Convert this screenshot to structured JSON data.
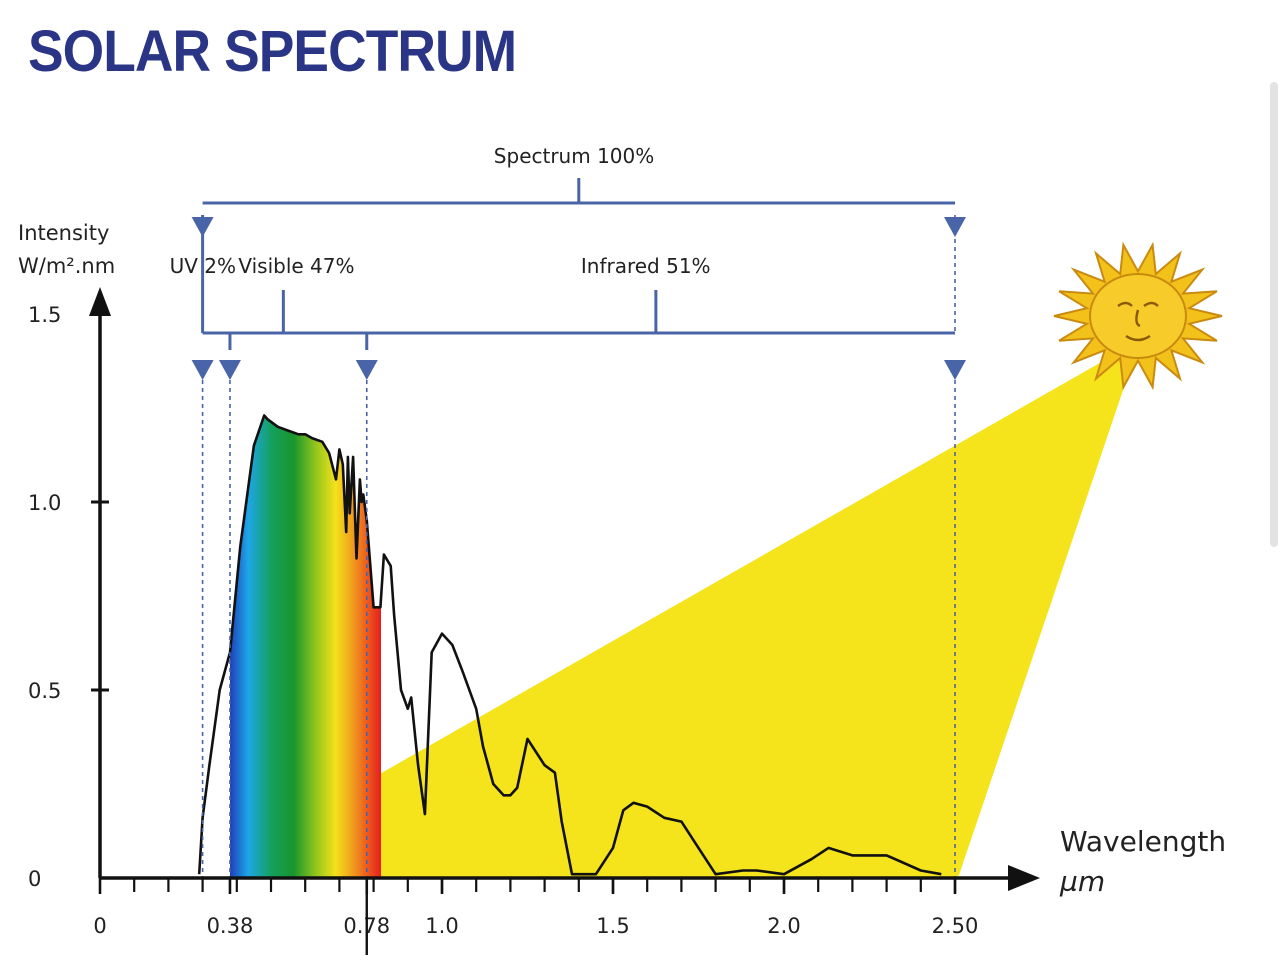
{
  "title": "SOLAR SPECTRUM",
  "colors": {
    "title": "#2a3585",
    "bracket": "#4a64a8",
    "light_beam": "#f5e31c",
    "sun": "#f3c21a",
    "curve": "#111111"
  },
  "chart_data": {
    "type": "line",
    "title": "SOLAR SPECTRUM",
    "ylabel_lines": [
      "Intensity",
      "W/m².nm"
    ],
    "xlabel_lines": [
      "Wavelength",
      "µm"
    ],
    "xlim": [
      0,
      2.6
    ],
    "ylim": [
      0,
      1.5
    ],
    "x_ticks": [
      {
        "value": 0,
        "label": "0"
      },
      {
        "value": 0.38,
        "label": "0.38"
      },
      {
        "value": 0.78,
        "label": "0.78"
      },
      {
        "value": 1.0,
        "label": "1.0"
      },
      {
        "value": 1.5,
        "label": "1.5"
      },
      {
        "value": 2.0,
        "label": "2.0"
      },
      {
        "value": 2.5,
        "label": "2.50"
      }
    ],
    "y_ticks": [
      {
        "value": 0,
        "label": "0"
      },
      {
        "value": 0.5,
        "label": "0.5"
      },
      {
        "value": 1.0,
        "label": "1.0"
      },
      {
        "value": 1.5,
        "label": "1.5"
      }
    ],
    "bands": [
      {
        "label": "Spectrum 100%",
        "from": 0.3,
        "to": 2.5
      },
      {
        "label": "UV 2%",
        "from": 0.3,
        "to": 0.38
      },
      {
        "label": "Visible 47%",
        "from": 0.38,
        "to": 0.78
      },
      {
        "label": "Infrared 51%",
        "from": 0.78,
        "to": 2.5
      }
    ],
    "series": [
      {
        "x": [
          0.29,
          0.3,
          0.32,
          0.35,
          0.38,
          0.41,
          0.45,
          0.48,
          0.49,
          0.52,
          0.55,
          0.58,
          0.6,
          0.62,
          0.65,
          0.67,
          0.69,
          0.7,
          0.71,
          0.72,
          0.725,
          0.73,
          0.74,
          0.75,
          0.76,
          0.765,
          0.77,
          0.78,
          0.8,
          0.82,
          0.83,
          0.85,
          0.86,
          0.88,
          0.9,
          0.91,
          0.93,
          0.95,
          0.97,
          1.0,
          1.03,
          1.06,
          1.1,
          1.12,
          1.15,
          1.18,
          1.2,
          1.22,
          1.25,
          1.3,
          1.33,
          1.35,
          1.38,
          1.45,
          1.5,
          1.53,
          1.56,
          1.6,
          1.65,
          1.7,
          1.75,
          1.8,
          1.88,
          1.92,
          2.0,
          2.08,
          2.13,
          2.2,
          2.3,
          2.4,
          2.46
        ],
        "y": [
          0.01,
          0.16,
          0.3,
          0.5,
          0.6,
          0.88,
          1.15,
          1.23,
          1.22,
          1.2,
          1.19,
          1.18,
          1.18,
          1.17,
          1.16,
          1.13,
          1.06,
          1.14,
          1.1,
          0.92,
          1.12,
          0.97,
          1.12,
          0.85,
          1.06,
          1.0,
          1.02,
          0.95,
          0.72,
          0.72,
          0.86,
          0.83,
          0.7,
          0.5,
          0.45,
          0.48,
          0.3,
          0.17,
          0.6,
          0.65,
          0.62,
          0.55,
          0.45,
          0.35,
          0.25,
          0.22,
          0.22,
          0.24,
          0.37,
          0.3,
          0.28,
          0.15,
          0.01,
          0.01,
          0.08,
          0.18,
          0.2,
          0.19,
          0.16,
          0.15,
          0.08,
          0.01,
          0.02,
          0.02,
          0.01,
          0.05,
          0.08,
          0.06,
          0.06,
          0.02,
          0.01
        ]
      }
    ],
    "grid": false,
    "legend": "none"
  }
}
